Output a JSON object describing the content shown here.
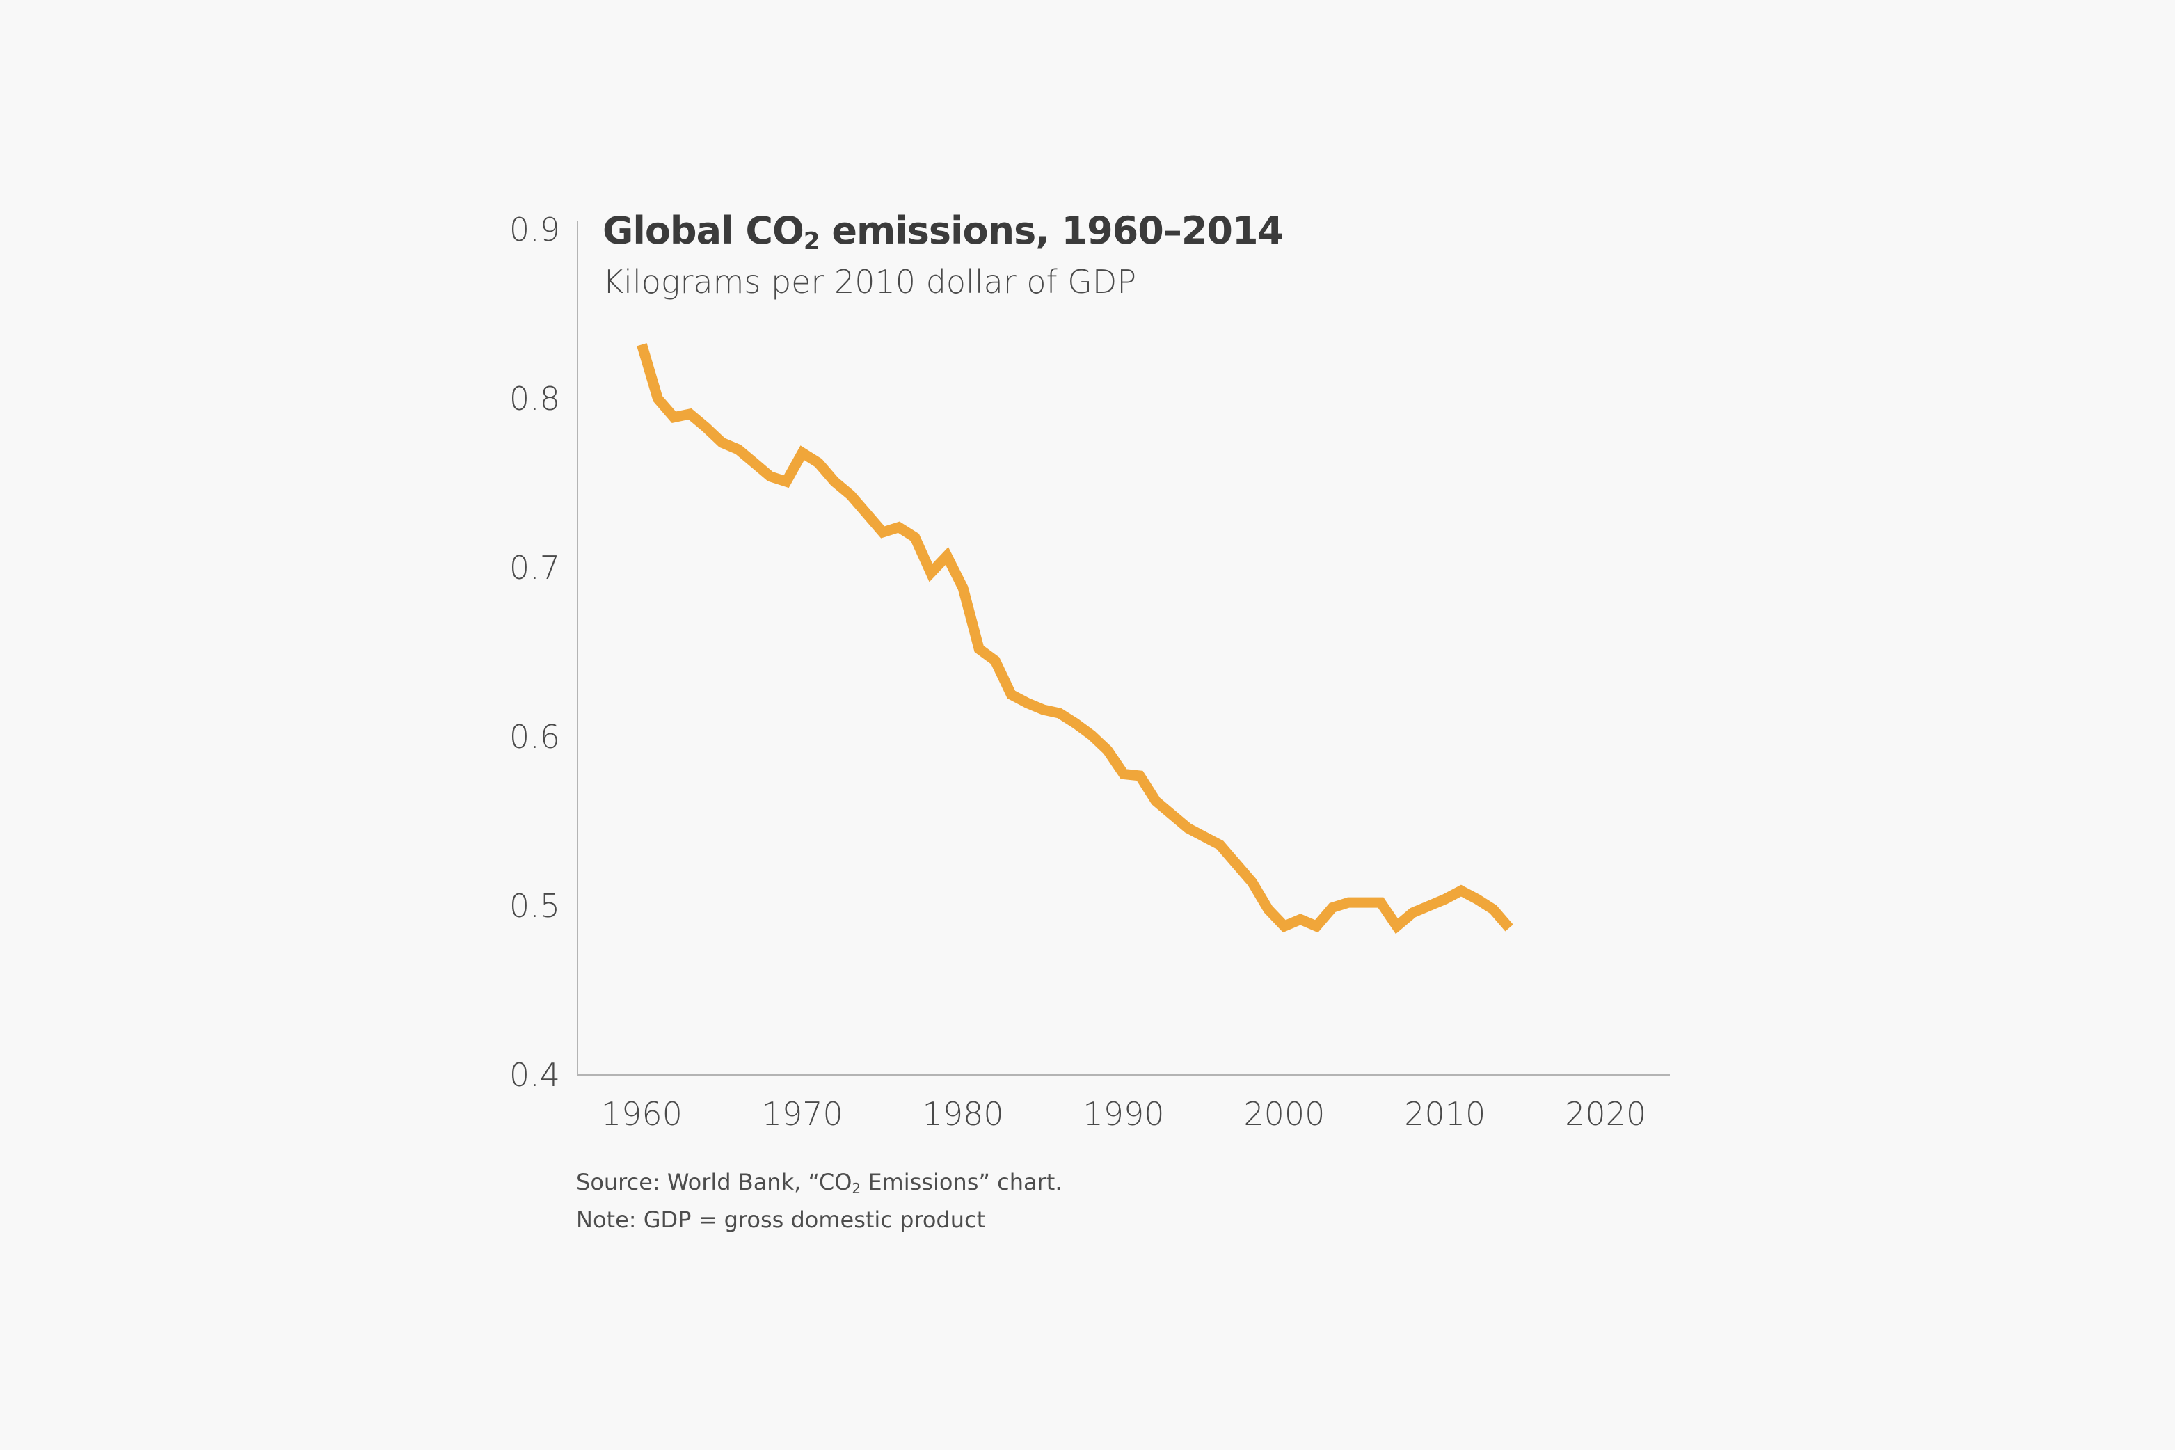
{
  "chart_data": {
    "type": "line",
    "title_parts": [
      "Global CO",
      "2",
      " emissions, 1960–2014"
    ],
    "subtitle": "Kilograms per 2010 dollar of GDP",
    "source_parts": [
      "Source: World Bank, “CO",
      "2",
      " Emissions” chart."
    ],
    "note": "Note: GDP = gross domestic product",
    "xlabel": "",
    "ylabel": "",
    "xlim": [
      1956,
      2024
    ],
    "ylim": [
      0.4,
      0.9
    ],
    "x_ticks": [
      1960,
      1970,
      1980,
      1990,
      2000,
      2010,
      2020
    ],
    "y_ticks": [
      "0.4",
      "0.5",
      "0.6",
      "0.7",
      "0.8",
      "0.9"
    ],
    "grid": false,
    "colors": {
      "line": "#f0a63a",
      "axis": "#b4b4b4",
      "text": "#4a4a4a",
      "background": "#f8f8f8"
    },
    "series": [
      {
        "x": [
          1960,
          1961,
          1962,
          1963,
          1964,
          1965,
          1966,
          1967,
          1968,
          1969,
          1970,
          1971,
          1972,
          1973,
          1974,
          1975,
          1976,
          1977,
          1978,
          1979,
          1980,
          1981,
          1982,
          1983,
          1984,
          1985,
          1986,
          1987,
          1988,
          1989,
          1990,
          1991,
          1992,
          1993,
          1994,
          1995,
          1996,
          1997,
          1998,
          1999,
          2000,
          2001,
          2002,
          2003,
          2004,
          2005,
          2006,
          2007,
          2008,
          2009,
          2010,
          2011,
          2012,
          2013,
          2014
        ],
        "values": [
          0.832,
          0.8,
          0.789,
          0.791,
          0.783,
          0.774,
          0.77,
          0.762,
          0.754,
          0.751,
          0.768,
          0.762,
          0.751,
          0.743,
          0.732,
          0.721,
          0.724,
          0.718,
          0.697,
          0.707,
          0.688,
          0.652,
          0.645,
          0.625,
          0.62,
          0.616,
          0.614,
          0.608,
          0.601,
          0.592,
          0.578,
          0.577,
          0.562,
          0.554,
          0.546,
          0.541,
          0.536,
          0.525,
          0.514,
          0.498,
          0.488,
          0.492,
          0.488,
          0.499,
          0.502,
          0.502,
          0.502,
          0.488,
          0.496,
          0.5,
          0.504,
          0.509,
          0.504,
          0.498,
          0.487
        ]
      }
    ]
  }
}
